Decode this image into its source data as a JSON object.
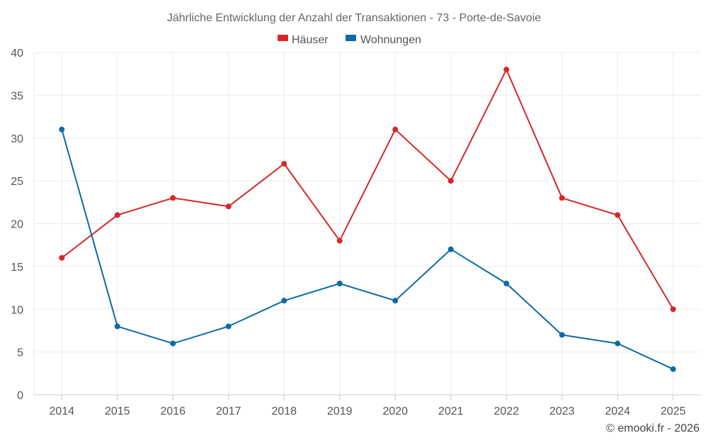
{
  "chart_data": {
    "type": "line",
    "title": "Jährliche Entwicklung der Anzahl der Transaktionen - 73 - Porte-de-Savoie",
    "xlabel": "",
    "ylabel": "",
    "categories": [
      "2014",
      "2015",
      "2016",
      "2017",
      "2018",
      "2019",
      "2020",
      "2021",
      "2022",
      "2023",
      "2024",
      "2025"
    ],
    "ylim": [
      0,
      40
    ],
    "yticks": [
      "0",
      "5",
      "10",
      "15",
      "20",
      "25",
      "30",
      "35",
      "40"
    ],
    "grid": true,
    "legend_position": "top-center",
    "series": [
      {
        "name": "Häuser",
        "color": "#d62728",
        "values": [
          16,
          21,
          23,
          22,
          27,
          18,
          31,
          25,
          38,
          23,
          21,
          10
        ]
      },
      {
        "name": "Wohnungen",
        "color": "#0e6aa3",
        "values": [
          31,
          8,
          6,
          8,
          11,
          13,
          11,
          17,
          13,
          7,
          6,
          3
        ]
      }
    ]
  },
  "credit": "© emooki.fr - 2026"
}
